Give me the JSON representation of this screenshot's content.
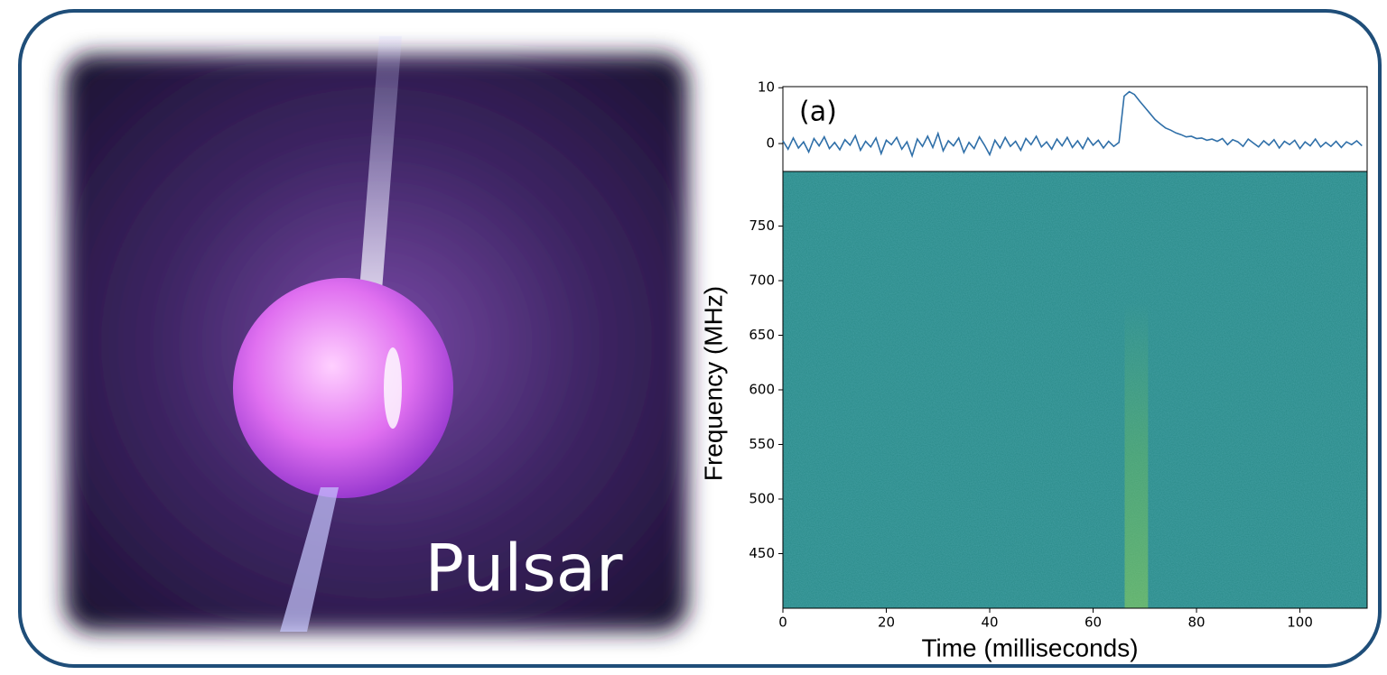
{
  "label": "Pulsar",
  "chart_data": [
    {
      "type": "line",
      "annotation": "(a)",
      "x": [
        0,
        1,
        2,
        3,
        4,
        5,
        6,
        7,
        8,
        9,
        10,
        11,
        12,
        13,
        14,
        15,
        16,
        17,
        18,
        19,
        20,
        21,
        22,
        23,
        24,
        25,
        26,
        27,
        28,
        29,
        30,
        31,
        32,
        33,
        34,
        35,
        36,
        37,
        38,
        39,
        40,
        41,
        42,
        43,
        44,
        45,
        46,
        47,
        48,
        49,
        50,
        51,
        52,
        53,
        54,
        55,
        56,
        57,
        58,
        59,
        60,
        61,
        62,
        63,
        64,
        65,
        66,
        67,
        68,
        69,
        70,
        71,
        72,
        73,
        74,
        75,
        76,
        77,
        78,
        79,
        80,
        81,
        82,
        83,
        84,
        85,
        86,
        87,
        88,
        89,
        90,
        91,
        92,
        93,
        94,
        95,
        96,
        97,
        98,
        99,
        100,
        101,
        102,
        103,
        104,
        105,
        106,
        107,
        108,
        109,
        110,
        111,
        112
      ],
      "series": [
        {
          "color": "#2f6fa8",
          "values": [
            0.5,
            -1,
            1,
            -0.8,
            0.3,
            -1.5,
            0.9,
            -0.4,
            1.2,
            -0.9,
            0.2,
            -1.1,
            0.7,
            -0.3,
            1.4,
            -1.2,
            0.4,
            -0.6,
            1.0,
            -1.8,
            0.6,
            -0.2,
            1.1,
            -1.0,
            0.3,
            -2.2,
            0.8,
            -0.5,
            1.3,
            -0.7,
            1.8,
            -1.3,
            0.5,
            -0.4,
            1.0,
            -1.6,
            0.2,
            -0.9,
            1.2,
            -0.3,
            -2.0,
            0.6,
            -0.8,
            1.1,
            -0.5,
            0.4,
            -1.2,
            0.9,
            -0.2,
            1.3,
            -0.6,
            0.3,
            -1.0,
            0.8,
            -0.4,
            1.1,
            -0.7,
            0.5,
            -0.9,
            1.0,
            -0.3,
            0.6,
            -0.8,
            0.4,
            -0.5,
            0.2,
            8.5,
            9.3,
            8.8,
            7.6,
            6.5,
            5.4,
            4.3,
            3.5,
            2.8,
            2.4,
            1.9,
            1.6,
            1.2,
            1.3,
            0.9,
            1.0,
            0.6,
            0.8,
            0.4,
            0.9,
            -0.2,
            0.7,
            0.3,
            -0.5,
            0.8,
            0.1,
            -0.6,
            0.5,
            -0.3,
            0.7,
            -0.8,
            0.4,
            -0.2,
            0.6,
            -0.9,
            0.3,
            -0.4,
            0.8,
            -0.6,
            0.2,
            -0.5,
            0.4,
            -0.7,
            0.3,
            -0.2,
            0.5,
            -0.4
          ]
        }
      ],
      "xlim": [
        0,
        113
      ],
      "ylim": [
        -5,
        10.2
      ],
      "yticks": [
        0,
        10
      ]
    },
    {
      "type": "heatmap",
      "xlabel": "Time (milliseconds)",
      "ylabel": "Frequency (MHz)",
      "xlim": [
        0,
        113
      ],
      "ylim": [
        400,
        800
      ],
      "xticks": [
        0,
        20,
        40,
        60,
        80,
        100
      ],
      "yticks": [
        450,
        500,
        550,
        600,
        650,
        700,
        750
      ]
    }
  ]
}
